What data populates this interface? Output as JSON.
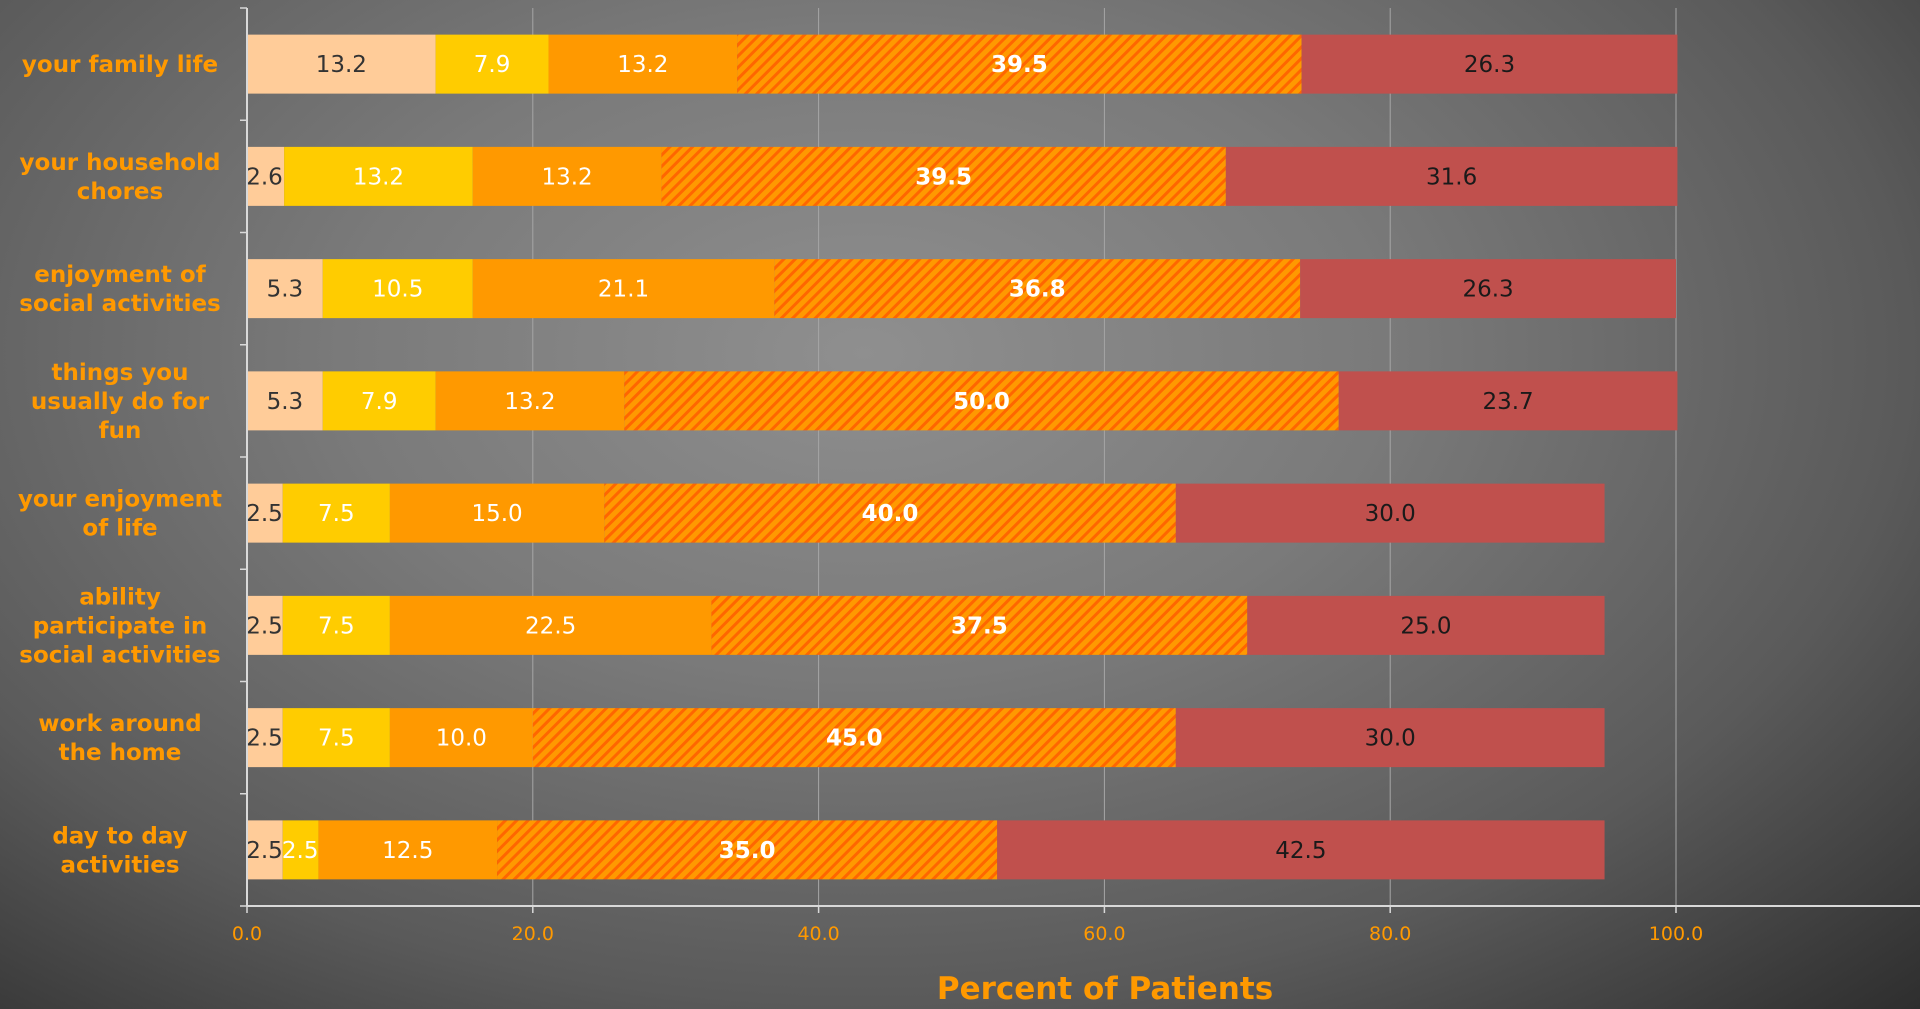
{
  "chart_data": {
    "type": "bar",
    "orientation": "horizontal",
    "stacked": true,
    "categories": [
      "your family life",
      "your household chores",
      "enjoyment of social activities",
      "things you usually do for fun",
      "your enjoyment of life",
      "ability participate in social activities",
      "work around the home",
      "day to day activities"
    ],
    "category_lines": [
      [
        "your family life"
      ],
      [
        "your household",
        "chores"
      ],
      [
        "enjoyment of",
        "social activities"
      ],
      [
        "things you",
        "usually do for",
        "fun"
      ],
      [
        "your enjoyment",
        "of life"
      ],
      [
        "ability",
        "participate in",
        "social activities"
      ],
      [
        "work around",
        "the home"
      ],
      [
        "day to day",
        "activities"
      ]
    ],
    "series": [
      {
        "values": [
          13.2,
          2.6,
          5.3,
          5.3,
          2.5,
          2.5,
          2.5,
          2.5
        ],
        "color": "#FFCC99",
        "hatched": false,
        "label_color": "#333333",
        "label_bold": false
      },
      {
        "values": [
          7.9,
          13.2,
          10.5,
          7.9,
          7.5,
          7.5,
          7.5,
          2.5
        ],
        "color": "#FFCC00",
        "hatched": false,
        "label_color": "#FFFFFF",
        "label_bold": false
      },
      {
        "values": [
          13.2,
          13.2,
          21.1,
          13.2,
          15.0,
          22.5,
          10.0,
          12.5
        ],
        "color": "#FF9900",
        "hatched": false,
        "label_color": "#FFFFFF",
        "label_bold": false
      },
      {
        "values": [
          39.5,
          39.5,
          36.8,
          50.0,
          40.0,
          37.5,
          45.0,
          35.0
        ],
        "color": "#FF9900",
        "hatched": true,
        "hatch_color": "#FF6600",
        "label_color": "#FFFFFF",
        "label_bold": true
      },
      {
        "values": [
          26.3,
          31.6,
          26.3,
          23.7,
          30.0,
          25.0,
          30.0,
          42.5
        ],
        "color": "#C0504D",
        "hatched": false,
        "label_color": "#1A1A1A",
        "label_bold": false
      }
    ],
    "xlabel": "Percent of Patients",
    "ylabel": "",
    "xlim": [
      0,
      100
    ],
    "xticks": [
      "0.0",
      "20.0",
      "40.0",
      "60.0",
      "80.0",
      "100.0"
    ],
    "grid": true,
    "legend": "none",
    "colors": {
      "category_text": "#FF9900",
      "tick_text": "#FF9900",
      "axis_title": "#FF9900",
      "grid": "#A6A6A6",
      "axis": "#D9D9D9"
    }
  }
}
